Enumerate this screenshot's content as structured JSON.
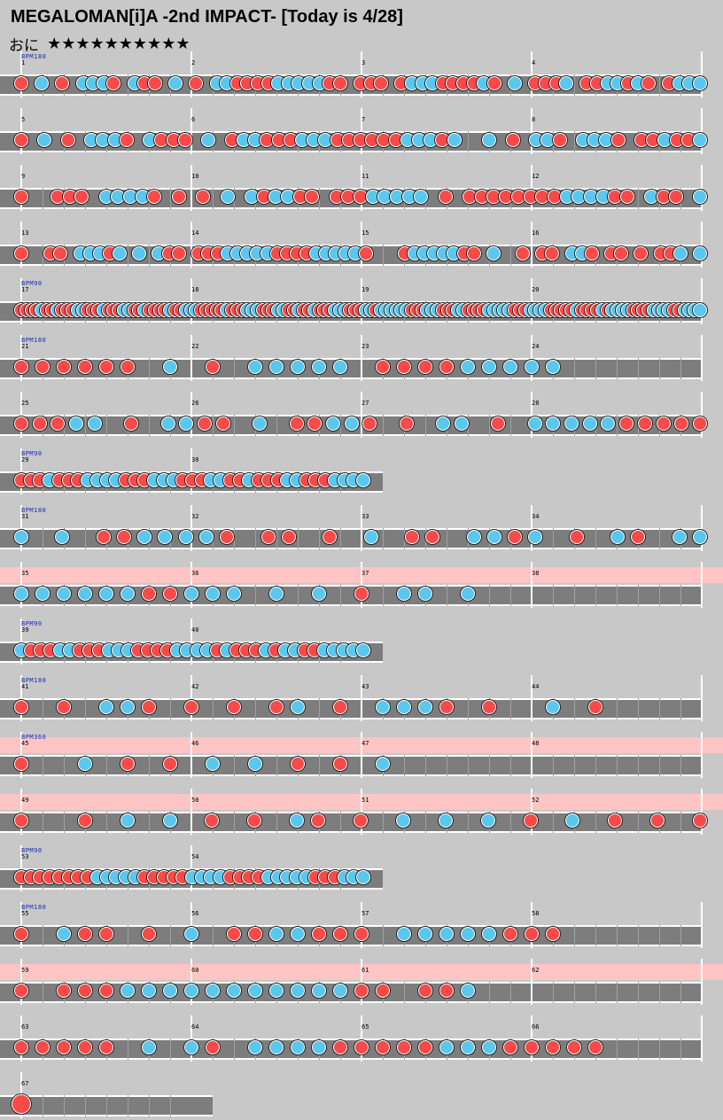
{
  "chart": {
    "title": "MEGALOMAN[i]A -2nd IMPACT- [Today is 4/28]",
    "course": "おに",
    "stars": "★★★★★★★★★★",
    "colors": {
      "don": "#f84a48",
      "ka": "#5ac8ee",
      "gogo": "#ffc4c4",
      "lane": "#7d7d7d",
      "background": "#c8c8c8"
    },
    "rows": [
      {
        "bpm": "BPM180",
        "measures": [
          {
            "num": "1",
            "notes": "d.k.d.kkkd.kdd.k.d.kkddddkkkkkdd."
          },
          {
            "num": "2",
            "notes": ""
          },
          {
            "num": "3",
            "notes": "ddd.dkkkddddkd.k.dddk.ddkkdkd.dkkk"
          },
          {
            "num": "4",
            "notes": ""
          }
        ]
      },
      {
        "bpm": "",
        "measures": [
          {
            "num": "5",
            "notes": "d.k.d.kkkd.kddd.k.dkkdddkkkdddd"
          },
          {
            "num": "6",
            "notes": ""
          },
          {
            "num": "7",
            "notes": "ddkkkdk..k.d.kkd.kkkd.ddkddk"
          },
          {
            "num": "8",
            "notes": ""
          }
        ]
      },
      {
        "bpm": "",
        "measures": [
          {
            "num": "9",
            "notes": "d..ddd.kkkkd.d.d.k.kdkkdd.dddkkkkk.d.dd"
          },
          {
            "num": "10",
            "notes": ""
          },
          {
            "num": "11",
            "notes": ""
          },
          {
            "num": "12",
            "notes": "ddddddkkkkdd.kdd.k"
          }
        ]
      },
      {
        "bpm": "",
        "measures": [
          {
            "num": "13",
            "notes": "d..dd.kkkdk.k.kdd.dddkkkkkddddkkkkkd"
          },
          {
            "num": "14",
            "notes": ""
          },
          {
            "num": "15",
            "notes": "...dkkkkkdd.k"
          },
          {
            "num": "16",
            "notes": "..d.dd.kkd.dd.d.ddk.k"
          }
        ]
      },
      {
        "bpm": "BPM90",
        "measures": [
          {
            "num": "17",
            "notes": "ddddkddkdddkkdddkdddkkddkddddkddkkkd"
          },
          {
            "num": "18",
            "notes": "ddddkdddkkkdddkkddkddkdddkkkdddkkdkk"
          },
          {
            "num": "19",
            "notes": "kkkkdddkkkdddkkddddkkkkkdddkkkkdddddk"
          },
          {
            "num": "20",
            "notes": "ddddkdkkkkddddkkkkddkkkk"
          }
        ]
      },
      {
        "bpm": "BPM180",
        "measures": [
          {
            "num": "21",
            "notes": "dddddd.k.d.kkkkk.ddddkkkkk"
          },
          {
            "num": "22",
            "notes": ""
          },
          {
            "num": "23",
            "notes": ""
          },
          {
            "num": "24",
            "notes": ""
          }
        ]
      },
      {
        "bpm": "",
        "measures": [
          {
            "num": "25",
            "notes": "dddkk.d.kkdd.k.ddkkd.d.kk.d.kkkkkddddd"
          },
          {
            "num": "26",
            "notes": ""
          },
          {
            "num": "27",
            "notes": ""
          },
          {
            "num": "28",
            "notes": ""
          }
        ]
      },
      {
        "bpm": "BPM90",
        "measures": [
          {
            "num": "29",
            "notes": "dddkdddkkkkdddkkkdddkkddkdddkkdddkkkk"
          },
          {
            "num": "30",
            "notes": ""
          }
        ]
      },
      {
        "bpm": "BPM180",
        "measures": [
          {
            "num": "31",
            "notes": "k.k.ddkkkkd.dd.d.k.dd.kkdk.d.kd.kk"
          },
          {
            "num": "32",
            "notes": ""
          },
          {
            "num": "33",
            "notes": ""
          },
          {
            "num": "34",
            "notes": ""
          }
        ]
      },
      {
        "bpm": "",
        "gogo": true,
        "measures": [
          {
            "num": "35",
            "notes": "kkkkkkddkkk.k.k.d.kk.k"
          },
          {
            "num": "36",
            "notes": ""
          },
          {
            "num": "37",
            "notes": ""
          },
          {
            "num": "38",
            "notes": ""
          }
        ]
      },
      {
        "bpm": "BPM90",
        "measures": [
          {
            "num": "39",
            "notes": "kdddkkdddkkkddddkkkkdkdddkdkkddkkkkk"
          },
          {
            "num": "40",
            "notes": ""
          }
        ]
      },
      {
        "bpm": "BPM180",
        "measures": [
          {
            "num": "41",
            "notes": "d.d.kkd.d.d.dk.d.kkkd.d..k.d"
          },
          {
            "num": "42",
            "notes": ""
          },
          {
            "num": "43",
            "notes": ""
          },
          {
            "num": "44",
            "notes": ""
          }
        ]
      },
      {
        "bpm": "BPM360",
        "gogo": true,
        "measures": [
          {
            "num": "45",
            "notes": "d..k.d.d.k.k.d.d.k"
          },
          {
            "num": "46",
            "notes": ""
          },
          {
            "num": "47",
            "notes": ""
          },
          {
            "num": "48",
            "notes": ""
          }
        ]
      },
      {
        "bpm": "",
        "gogo": true,
        "measures": [
          {
            "num": "49",
            "notes": "d..d.k.k.d.d.kd.d.k.k.k.d.k.d.d.d"
          },
          {
            "num": "50",
            "notes": ""
          },
          {
            "num": "51",
            "notes": ""
          },
          {
            "num": "52",
            "notes": ""
          }
        ]
      },
      {
        "bpm": "BPM90",
        "measures": [
          {
            "num": "53",
            "notes": "ddddddddkkkkkdddddkkkkddddkkkkkdddkkk"
          },
          {
            "num": "54",
            "notes": ""
          }
        ]
      },
      {
        "bpm": "BPM180",
        "measures": [
          {
            "num": "55",
            "notes": "d.kdd.d.k.ddkkddd.kkkkkddd"
          },
          {
            "num": "56",
            "notes": ""
          },
          {
            "num": "57",
            "notes": ""
          },
          {
            "num": "58",
            "notes": ""
          }
        ]
      },
      {
        "bpm": "",
        "gogo": true,
        "measures": [
          {
            "num": "59",
            "notes": "d.dddkkkkkkkkkkkdd.ddk"
          },
          {
            "num": "60",
            "notes": ""
          },
          {
            "num": "61",
            "notes": ""
          },
          {
            "num": "62",
            "notes": ""
          }
        ]
      },
      {
        "bpm": "",
        "measures": [
          {
            "num": "63",
            "notes": "ddddd.k.kd.kkkkdddddkkkddddd"
          },
          {
            "num": "64",
            "notes": ""
          },
          {
            "num": "65",
            "notes": ""
          },
          {
            "num": "66",
            "notes": ""
          }
        ]
      },
      {
        "bpm": "",
        "measures": [
          {
            "num": "67",
            "notes": "D"
          }
        ]
      }
    ]
  }
}
